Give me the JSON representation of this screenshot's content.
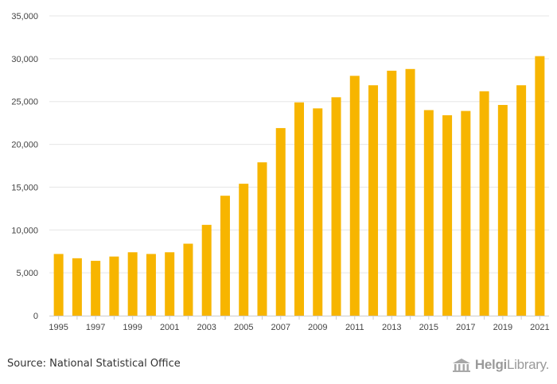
{
  "chart_data": {
    "type": "bar",
    "title": "",
    "xlabel": "",
    "ylabel": "",
    "ylim": [
      0,
      35000
    ],
    "yticks": [
      0,
      5000,
      10000,
      15000,
      20000,
      25000,
      30000,
      35000
    ],
    "ytick_labels": [
      "0",
      "5,000",
      "10,000",
      "15,000",
      "20,000",
      "25,000",
      "30,000",
      "35,000"
    ],
    "categories": [
      "1995",
      "1996",
      "1997",
      "1998",
      "1999",
      "2000",
      "2001",
      "2002",
      "2003",
      "2004",
      "2005",
      "2006",
      "2007",
      "2008",
      "2009",
      "2010",
      "2011",
      "2012",
      "2013",
      "2014",
      "2015",
      "2016",
      "2017",
      "2018",
      "2019",
      "2020",
      "2021"
    ],
    "xtick_labels": [
      "1995",
      "1997",
      "1999",
      "2001",
      "2003",
      "2005",
      "2007",
      "2009",
      "2011",
      "2013",
      "2015",
      "2017",
      "2019",
      "2021"
    ],
    "values": [
      7200,
      6700,
      6400,
      6900,
      7400,
      7200,
      7400,
      8400,
      10600,
      14000,
      15400,
      17900,
      21900,
      24900,
      24200,
      25500,
      28000,
      26900,
      28600,
      28800,
      24000,
      23400,
      23900,
      26200,
      24600,
      26900,
      30300
    ],
    "bar_color": "#f7b500",
    "grid": true
  },
  "footer": {
    "source": "Source: National Statistical Office",
    "brand_part1": "Helgi",
    "brand_part2": "Library."
  },
  "colors": {
    "grid": "#e6e6e6",
    "axis": "#cccccc",
    "text": "#444444"
  }
}
